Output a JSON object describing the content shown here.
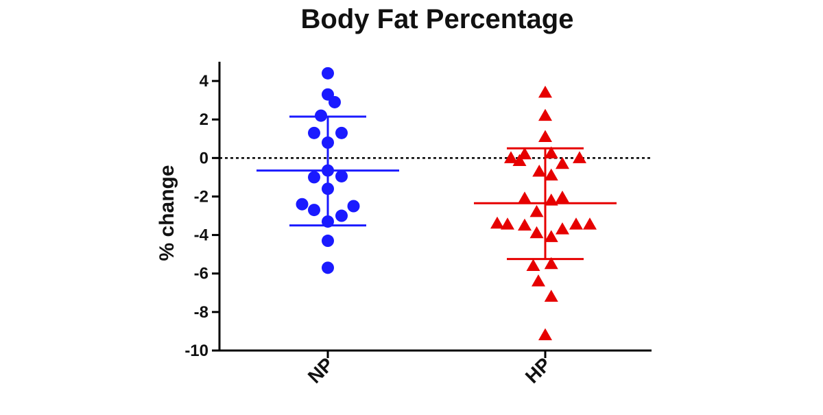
{
  "chart_data": {
    "type": "scatter",
    "title": "Body Fat Percentage",
    "xlabel": "",
    "ylabel": "% change",
    "ylim": [
      -10,
      5
    ],
    "yticks": [
      4,
      2,
      0,
      -2,
      -4,
      -6,
      -8,
      -10
    ],
    "ytick_labels": [
      "4",
      "2",
      "0",
      "-2",
      "-4",
      "-6",
      "-8",
      "-10"
    ],
    "categories": [
      "NP",
      "HP"
    ],
    "reference_line": 0,
    "grid": false,
    "legend": "none",
    "series": [
      {
        "category": "NP",
        "color": "#1a1aff",
        "marker": "circle",
        "mean": -0.65,
        "sd_upper": 2.15,
        "sd_lower": -3.5,
        "points": [
          {
            "offset": 0.0,
            "y": 4.4
          },
          {
            "offset": 0.0,
            "y": 3.3
          },
          {
            "offset": 0.4,
            "y": 2.9
          },
          {
            "offset": -0.4,
            "y": 2.2
          },
          {
            "offset": -0.8,
            "y": 1.3
          },
          {
            "offset": 0.8,
            "y": 1.3
          },
          {
            "offset": 0.0,
            "y": 0.8
          },
          {
            "offset": 0.0,
            "y": -0.65
          },
          {
            "offset": -0.8,
            "y": -1.0
          },
          {
            "offset": 0.8,
            "y": -0.95
          },
          {
            "offset": 0.0,
            "y": -1.6
          },
          {
            "offset": -1.5,
            "y": -2.4
          },
          {
            "offset": 1.5,
            "y": -2.5
          },
          {
            "offset": -0.8,
            "y": -2.7
          },
          {
            "offset": 0.8,
            "y": -3.0
          },
          {
            "offset": 0.0,
            "y": -3.3
          },
          {
            "offset": 0.0,
            "y": -4.3
          },
          {
            "offset": 0.0,
            "y": -5.7
          }
        ]
      },
      {
        "category": "HP",
        "color": "#e60000",
        "marker": "triangle",
        "mean": -2.35,
        "sd_upper": 0.5,
        "sd_lower": -5.25,
        "points": [
          {
            "offset": 0.0,
            "y": 3.4
          },
          {
            "offset": 0.0,
            "y": 2.2
          },
          {
            "offset": 0.0,
            "y": 1.1
          },
          {
            "offset": -1.2,
            "y": 0.2
          },
          {
            "offset": 0.35,
            "y": 0.25
          },
          {
            "offset": -2.0,
            "y": 0.0
          },
          {
            "offset": -1.5,
            "y": -0.15
          },
          {
            "offset": 2.0,
            "y": 0.0
          },
          {
            "offset": 1.0,
            "y": -0.3
          },
          {
            "offset": -0.35,
            "y": -0.7
          },
          {
            "offset": 0.35,
            "y": -0.9
          },
          {
            "offset": -1.2,
            "y": -2.1
          },
          {
            "offset": 0.35,
            "y": -2.2
          },
          {
            "offset": 1.0,
            "y": -2.05
          },
          {
            "offset": -0.5,
            "y": -2.8
          },
          {
            "offset": -2.8,
            "y": -3.4
          },
          {
            "offset": -2.2,
            "y": -3.45
          },
          {
            "offset": -1.2,
            "y": -3.5
          },
          {
            "offset": 1.8,
            "y": -3.45
          },
          {
            "offset": 2.6,
            "y": -3.45
          },
          {
            "offset": 1.0,
            "y": -3.7
          },
          {
            "offset": -0.5,
            "y": -3.9
          },
          {
            "offset": 0.35,
            "y": -4.1
          },
          {
            "offset": -0.7,
            "y": -5.6
          },
          {
            "offset": 0.35,
            "y": -5.5
          },
          {
            "offset": -0.4,
            "y": -6.4
          },
          {
            "offset": 0.35,
            "y": -7.2
          },
          {
            "offset": 0.0,
            "y": -9.2
          }
        ]
      }
    ]
  }
}
